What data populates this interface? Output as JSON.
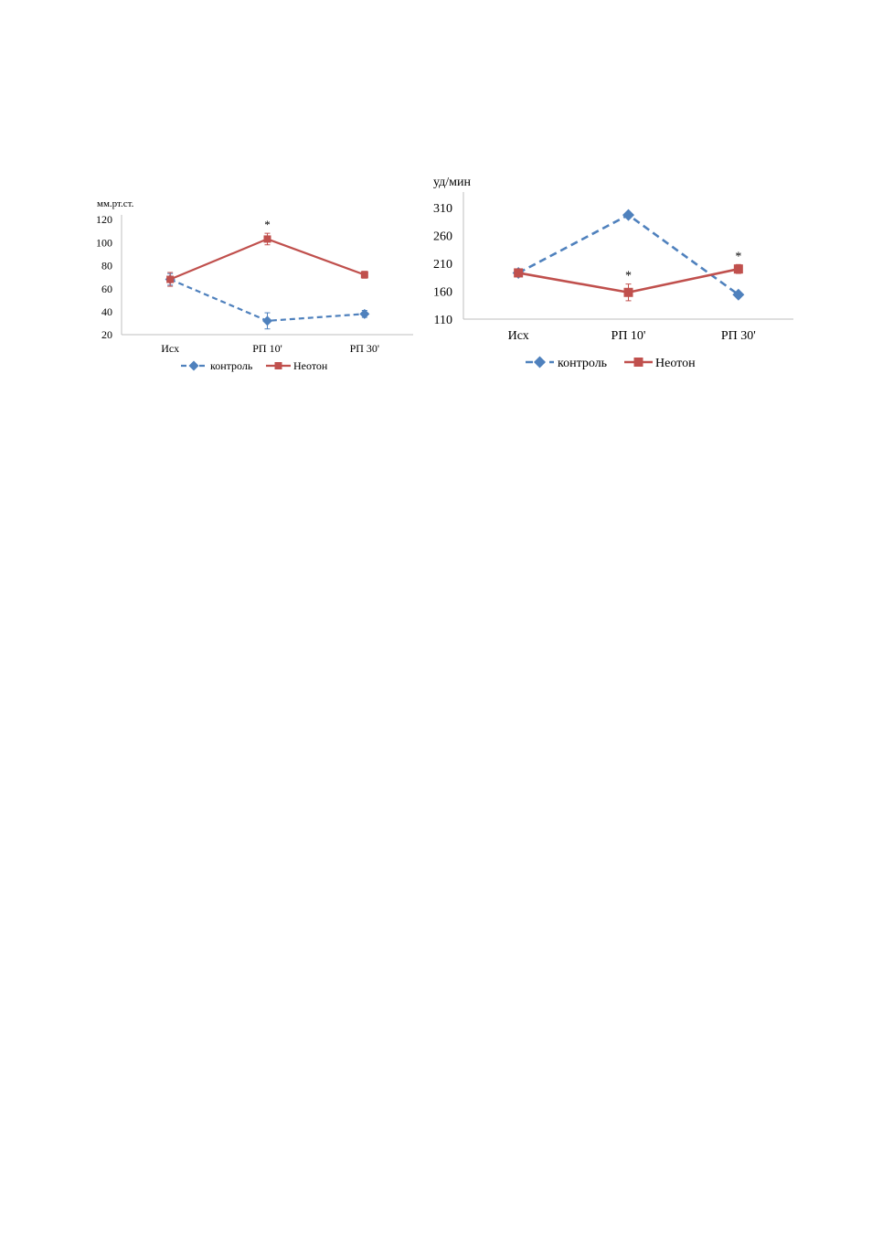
{
  "colors": {
    "control": "#4F81BD",
    "neoton": "#C0504D",
    "axis": "#BFBFBF"
  },
  "chart_data": [
    {
      "type": "line",
      "ylabel": "мм.рт.ст.",
      "categories": [
        "Исх",
        "РП 10'",
        "РП 30'"
      ],
      "ylim": [
        20,
        120
      ],
      "yticks": [
        20,
        40,
        60,
        80,
        100,
        120
      ],
      "grid": false,
      "legend_position": "bottom",
      "series": [
        {
          "name": "контроль",
          "line_style": "dashed",
          "marker": "diamond",
          "color": "#4F81BD",
          "values": [
            68,
            32,
            38
          ],
          "errors": [
            5,
            7,
            3
          ]
        },
        {
          "name": "Неотон",
          "line_style": "solid",
          "marker": "square",
          "color": "#C0504D",
          "values": [
            68,
            103,
            72
          ],
          "errors": [
            6,
            5,
            3
          ]
        }
      ],
      "annotations": [
        {
          "text": "*",
          "series": "Неотон",
          "category": "РП 10'"
        }
      ]
    },
    {
      "type": "line",
      "ylabel": "уд/мин",
      "categories": [
        "Исх",
        "РП 10'",
        "РП 30'"
      ],
      "ylim": [
        110,
        330
      ],
      "yticks": [
        110,
        160,
        210,
        260,
        310
      ],
      "grid": false,
      "legend_position": "bottom",
      "series": [
        {
          "name": "контроль",
          "line_style": "dashed",
          "marker": "diamond",
          "color": "#4F81BD",
          "values": [
            193,
            297,
            154
          ],
          "errors": [
            3,
            4,
            3
          ]
        },
        {
          "name": "Неотон",
          "line_style": "solid",
          "marker": "square",
          "color": "#C0504D",
          "values": [
            193,
            158,
            200
          ],
          "errors": [
            4,
            15,
            8
          ]
        }
      ],
      "annotations": [
        {
          "text": "*",
          "series": "Неотон",
          "category": "РП 10'"
        },
        {
          "text": "*",
          "series": "Неотон",
          "category": "РП 30'"
        }
      ]
    }
  ]
}
